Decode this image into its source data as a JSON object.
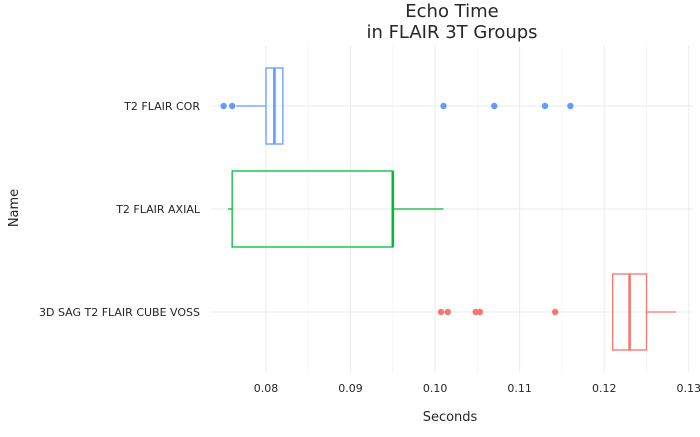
{
  "chart_data": {
    "type": "box",
    "orientation": "horizontal",
    "title": [
      "Echo Time",
      "in FLAIR 3T Groups"
    ],
    "xlabel": "Seconds",
    "ylabel": "Name",
    "xlim": [
      0.0735,
      0.1305
    ],
    "xticks": [
      0.08,
      0.09,
      0.1,
      0.11,
      0.12,
      0.13
    ],
    "xtick_labels": [
      "0.08",
      "0.09",
      "0.10",
      "0.11",
      "0.12",
      "0.13"
    ],
    "grid": true,
    "legend": "none",
    "categories": [
      "T2 FLAIR COR",
      "T2 FLAIR AXIAL",
      "3D SAG T2 FLAIR CUBE VOSS"
    ],
    "boxes": [
      {
        "name": "T2 FLAIR COR",
        "color": "#619CFF",
        "whisker_low": 0.0765,
        "q1": 0.08,
        "median": 0.081,
        "q3": 0.082,
        "whisker_high": 0.082,
        "outliers": [
          0.075,
          0.076,
          0.101,
          0.107,
          0.113,
          0.116
        ]
      },
      {
        "name": "T2 FLAIR AXIAL",
        "color": "#00BA38",
        "whisker_low": 0.0755,
        "q1": 0.076,
        "median": 0.095,
        "q3": 0.095,
        "whisker_high": 0.101,
        "outliers": []
      },
      {
        "name": "3D SAG T2 FLAIR CUBE VOSS",
        "color": "#F8766D",
        "whisker_low": 0.121,
        "q1": 0.121,
        "median": 0.123,
        "q3": 0.125,
        "whisker_high": 0.1285,
        "outliers": [
          0.1007,
          0.1015,
          0.1048,
          0.1053,
          0.1142
        ]
      }
    ]
  }
}
